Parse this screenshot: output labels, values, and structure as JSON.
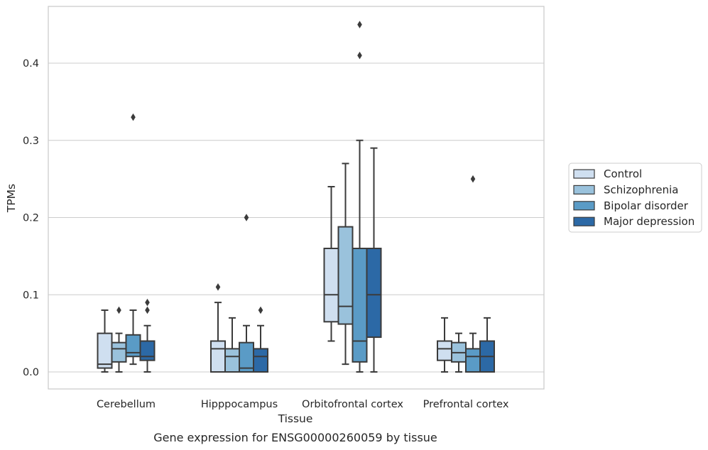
{
  "chart_data": {
    "type": "box",
    "title": "",
    "caption": "Gene expression for ENSG00000260059 by tissue",
    "xlabel": "Tissue",
    "ylabel": "TPMs",
    "ylim": [
      -0.022,
      0.476
    ],
    "yticks": [
      0.0,
      0.1,
      0.2,
      0.3,
      0.4
    ],
    "ytick_labels": [
      "0.0",
      "0.1",
      "0.2",
      "0.3",
      "0.4"
    ],
    "grid": "horizontal",
    "legend_position": "right",
    "categories": [
      "Cerebellum",
      "Hipppocampus",
      "Orbitofrontal cortex",
      "Prefrontal cortex"
    ],
    "series": [
      {
        "name": "Control",
        "color": "#cfdff0",
        "boxes": [
          {
            "whisker_low": 0.0,
            "q1": 0.005,
            "median": 0.01,
            "q3": 0.05,
            "whisker_high": 0.08,
            "outliers": []
          },
          {
            "whisker_low": 0.0,
            "q1": 0.0,
            "median": 0.03,
            "q3": 0.04,
            "whisker_high": 0.09,
            "outliers": [
              0.11
            ]
          },
          {
            "whisker_low": 0.04,
            "q1": 0.065,
            "median": 0.1,
            "q3": 0.16,
            "whisker_high": 0.24,
            "outliers": []
          },
          {
            "whisker_low": 0.0,
            "q1": 0.015,
            "median": 0.03,
            "q3": 0.04,
            "whisker_high": 0.07,
            "outliers": []
          }
        ]
      },
      {
        "name": "Schizophrenia",
        "color": "#9ac2dc",
        "boxes": [
          {
            "whisker_low": 0.0,
            "q1": 0.013,
            "median": 0.03,
            "q3": 0.038,
            "whisker_high": 0.05,
            "outliers": [
              0.08
            ]
          },
          {
            "whisker_low": 0.0,
            "q1": 0.0,
            "median": 0.02,
            "q3": 0.03,
            "whisker_high": 0.07,
            "outliers": []
          },
          {
            "whisker_low": 0.01,
            "q1": 0.062,
            "median": 0.085,
            "q3": 0.188,
            "whisker_high": 0.27,
            "outliers": []
          },
          {
            "whisker_low": 0.0,
            "q1": 0.013,
            "median": 0.025,
            "q3": 0.038,
            "whisker_high": 0.05,
            "outliers": []
          }
        ]
      },
      {
        "name": "Bipolar disorder",
        "color": "#5a9bc6",
        "boxes": [
          {
            "whisker_low": 0.01,
            "q1": 0.02,
            "median": 0.025,
            "q3": 0.048,
            "whisker_high": 0.08,
            "outliers": [
              0.33
            ]
          },
          {
            "whisker_low": 0.0,
            "q1": 0.0,
            "median": 0.005,
            "q3": 0.038,
            "whisker_high": 0.06,
            "outliers": [
              0.2
            ]
          },
          {
            "whisker_low": 0.0,
            "q1": 0.013,
            "median": 0.04,
            "q3": 0.16,
            "whisker_high": 0.3,
            "outliers": [
              0.41,
              0.45
            ]
          },
          {
            "whisker_low": 0.0,
            "q1": 0.0,
            "median": 0.02,
            "q3": 0.03,
            "whisker_high": 0.05,
            "outliers": [
              0.25
            ]
          }
        ]
      },
      {
        "name": "Major depression",
        "color": "#2c69a6",
        "boxes": [
          {
            "whisker_low": 0.0,
            "q1": 0.015,
            "median": 0.02,
            "q3": 0.04,
            "whisker_high": 0.06,
            "outliers": [
              0.08,
              0.09
            ]
          },
          {
            "whisker_low": 0.0,
            "q1": 0.0,
            "median": 0.02,
            "q3": 0.03,
            "whisker_high": 0.06,
            "outliers": [
              0.08
            ]
          },
          {
            "whisker_low": 0.0,
            "q1": 0.045,
            "median": 0.1,
            "q3": 0.16,
            "whisker_high": 0.29,
            "outliers": []
          },
          {
            "whisker_low": 0.0,
            "q1": 0.0,
            "median": 0.02,
            "q3": 0.04,
            "whisker_high": 0.07,
            "outliers": []
          }
        ]
      }
    ]
  }
}
